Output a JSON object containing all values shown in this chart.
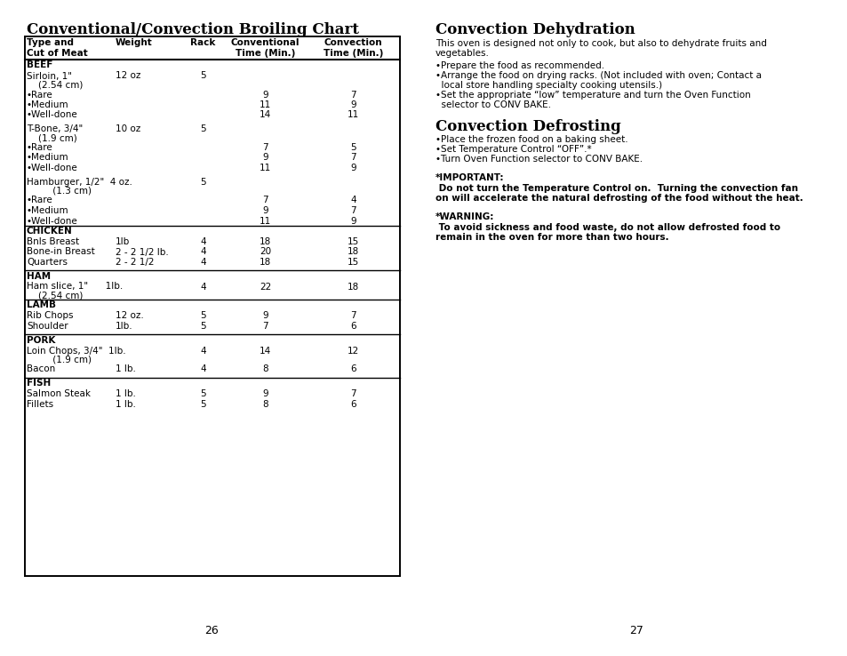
{
  "bg_color": "#ffffff",
  "page_numbers": [
    "26",
    "27"
  ],
  "left_title": "Conventional/Convection Broiling Chart",
  "right_section1_title": "Convection Dehydration",
  "right_section1_body1": "This oven is designed not only to cook, but also to dehydrate fruits and",
  "right_section1_body2": "vegetables.",
  "right_section1_bullets": [
    "•Prepare the food as recommended.",
    "•Arrange the food on drying racks. (Not included with oven; Contact a",
    "  local store handling specialty cooking utensils.)",
    "•Set the appropriate “low” temperature and turn the Oven Function",
    "  selector to CONV BAKE."
  ],
  "right_section2_title": "Convection Defrosting",
  "right_section2_bullets": [
    "•Place the frozen food on a baking sheet.",
    "•Set Temperature Control “OFF”.*",
    "•Turn Oven Function selector to CONV BAKE."
  ],
  "right_important_label": "*IMPORTANT:",
  "right_important_lines": [
    " Do not turn the Temperature Control on.  Turning the convection fan",
    "on will accelerate the natural defrosting of the food without the heat."
  ],
  "right_warning_label": "*WARNING:",
  "right_warning_lines": [
    " To avoid sickness and food waste, do not allow defrosted food to",
    "remain in the oven for more than two hours."
  ],
  "sections": [
    {
      "label": "BEEF",
      "divider": true,
      "rows": [
        {
          "cells": [
            "Sirloin, 1\"",
            "12 oz",
            "5",
            "",
            ""
          ],
          "line2": "    (2.54 cm)"
        },
        {
          "cells": [
            "•Rare",
            "",
            "",
            "9",
            "7"
          ]
        },
        {
          "cells": [
            "•Medium",
            "",
            "",
            "11",
            "9"
          ]
        },
        {
          "cells": [
            "•Well-done",
            "",
            "",
            "14",
            "11"
          ]
        },
        {
          "spacer": true
        },
        {
          "cells": [
            "T-Bone, 3/4\"",
            "10 oz",
            "5",
            "",
            ""
          ],
          "line2": "    (1.9 cm)"
        },
        {
          "cells": [
            "•Rare",
            "",
            "",
            "7",
            "5"
          ]
        },
        {
          "cells": [
            "•Medium",
            "",
            "",
            "9",
            "7"
          ]
        },
        {
          "cells": [
            "•Well-done",
            "",
            "",
            "11",
            "9"
          ]
        },
        {
          "spacer": true
        },
        {
          "cells": [
            "Hamburger, 1/2\"  4 oz.",
            "",
            "5",
            "",
            ""
          ],
          "line2": "         (1.3 cm)"
        },
        {
          "cells": [
            "•Rare",
            "",
            "",
            "7",
            "4"
          ]
        },
        {
          "cells": [
            "•Medium",
            "",
            "",
            "9",
            "7"
          ]
        },
        {
          "cells": [
            "•Well-done",
            "",
            "",
            "11",
            "9"
          ]
        }
      ]
    },
    {
      "label": "CHICKEN",
      "divider": true,
      "rows": [
        {
          "cells": [
            "Bnls Breast",
            "1lb",
            "4",
            "18",
            "15"
          ]
        },
        {
          "cells": [
            "Bone-in Breast",
            "2 - 2 1/2 lb.",
            "4",
            "20",
            "18"
          ]
        },
        {
          "cells": [
            "Quarters",
            "2 - 2 1/2",
            "4",
            "18",
            "15"
          ]
        },
        {
          "spacer": true
        }
      ]
    },
    {
      "label": "HAM",
      "divider": true,
      "rows": [
        {
          "cells": [
            "Ham slice, 1\"      1lb.",
            "",
            "4",
            "22",
            "18"
          ],
          "line2": "    (2.54 cm)"
        }
      ]
    },
    {
      "label": "LAMB",
      "divider": true,
      "rows": [
        {
          "cells": [
            "Rib Chops",
            "12 oz.",
            "5",
            "9",
            "7"
          ]
        },
        {
          "cells": [
            "Shoulder",
            "1lb.",
            "5",
            "7",
            "6"
          ]
        },
        {
          "spacer": true
        }
      ]
    },
    {
      "label": "PORK",
      "divider": true,
      "rows": [
        {
          "cells": [
            "Loin Chops, 3/4\"  1lb.",
            "",
            "4",
            "14",
            "12"
          ],
          "line2": "         (1.9 cm)"
        },
        {
          "cells": [
            "Bacon",
            "1 lb.",
            "4",
            "8",
            "6"
          ]
        },
        {
          "spacer": true
        }
      ]
    },
    {
      "label": "FISH",
      "divider": false,
      "rows": [
        {
          "cells": [
            "Salmon Steak",
            "1 lb.",
            "5",
            "9",
            "7"
          ]
        },
        {
          "cells": [
            "Fillets",
            "1 lb.",
            "5",
            "8",
            "6"
          ]
        }
      ]
    }
  ]
}
